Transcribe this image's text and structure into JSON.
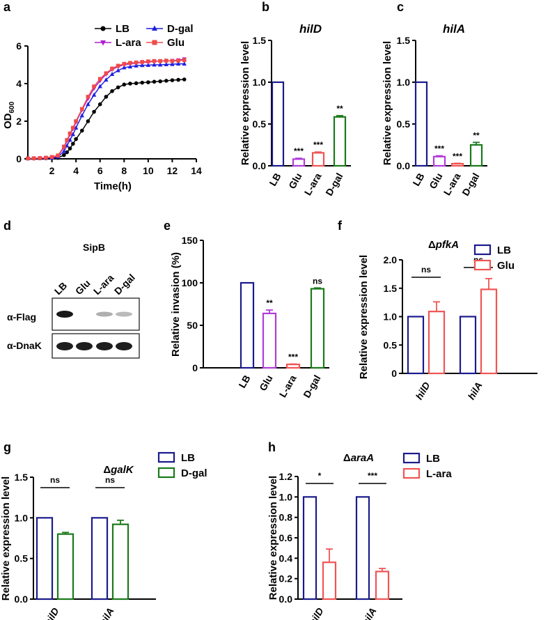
{
  "colors": {
    "LB": "#1a1a8c",
    "Glu": "#f05454",
    "Glu_purple": "#b03cd8",
    "L-ara": "#f05454",
    "D-gal": "#1a7a1a",
    "line_LB": "#000000",
    "line_Dgal": "#1f1fe0",
    "line_Lara": "#b01fd0",
    "line_Glu": "#ef4b4b"
  },
  "chart_data": [
    {
      "panel": "a",
      "type": "line",
      "title": "",
      "xlabel": "Time(h)",
      "ylabel": "OD600",
      "ylabel_main": "OD",
      "ylabel_sub": "600",
      "xlim": [
        0,
        14
      ],
      "ylim": [
        0,
        6
      ],
      "xticks": [
        "2",
        "4",
        "6",
        "8",
        "10",
        "12",
        "14"
      ],
      "yticks": [
        "0",
        "2",
        "4",
        "6"
      ],
      "legend": [
        "LB",
        "D-gal",
        "L-ara",
        "Glu"
      ],
      "series": [
        {
          "name": "LB",
          "marker": "circle",
          "x": [
            0,
            0.5,
            1,
            1.5,
            2,
            2.5,
            3,
            3.25,
            3.5,
            3.75,
            4,
            4.5,
            5,
            5.5,
            6,
            6.5,
            7,
            7.5,
            8,
            8.5,
            9,
            9.5,
            10,
            10.5,
            11,
            11.5,
            12,
            12.5,
            13
          ],
          "y": [
            0.02,
            0.02,
            0.03,
            0.03,
            0.04,
            0.05,
            0.2,
            0.35,
            0.55,
            0.8,
            1.05,
            1.5,
            2.0,
            2.5,
            2.9,
            3.3,
            3.6,
            3.8,
            3.95,
            4.0,
            4.02,
            4.05,
            4.07,
            4.1,
            4.12,
            4.15,
            4.18,
            4.2,
            4.22
          ]
        },
        {
          "name": "D-gal",
          "marker": "triangle",
          "x": [
            0,
            0.5,
            1,
            1.5,
            2,
            2.5,
            3,
            3.25,
            3.5,
            3.75,
            4,
            4.5,
            5,
            5.5,
            6,
            6.5,
            7,
            7.5,
            8,
            8.5,
            9,
            9.5,
            10,
            10.5,
            11,
            11.5,
            12,
            12.5,
            13
          ],
          "y": [
            0.02,
            0.02,
            0.03,
            0.04,
            0.05,
            0.1,
            0.4,
            0.7,
            1.0,
            1.3,
            1.65,
            2.3,
            2.9,
            3.4,
            3.85,
            4.2,
            4.5,
            4.7,
            4.85,
            4.9,
            4.95,
            4.97,
            4.98,
            5.0,
            5.0,
            5.02,
            5.03,
            5.05,
            5.05
          ]
        },
        {
          "name": "L-ara",
          "marker": "triangle-down",
          "x": [
            0,
            0.5,
            1,
            1.5,
            2,
            2.5,
            3,
            3.25,
            3.5,
            3.75,
            4,
            4.5,
            5,
            5.5,
            6,
            6.5,
            7,
            7.5,
            8,
            8.5,
            9,
            9.5,
            10,
            10.5,
            11,
            11.5,
            12,
            12.5,
            13
          ],
          "y": [
            0.02,
            0.03,
            0.04,
            0.05,
            0.08,
            0.15,
            0.6,
            0.95,
            1.3,
            1.6,
            1.95,
            2.6,
            3.2,
            3.75,
            4.15,
            4.5,
            4.75,
            4.9,
            5.0,
            5.05,
            5.1,
            5.12,
            5.15,
            5.18,
            5.2,
            5.2,
            5.22,
            5.25,
            5.3
          ]
        },
        {
          "name": "Glu",
          "marker": "square",
          "x": [
            0,
            0.5,
            1,
            1.5,
            2,
            2.5,
            3,
            3.25,
            3.5,
            3.75,
            4,
            4.5,
            5,
            5.5,
            6,
            6.5,
            7,
            7.5,
            8,
            8.5,
            9,
            9.5,
            10,
            10.5,
            11,
            11.5,
            12,
            12.5,
            13
          ],
          "y": [
            0.02,
            0.03,
            0.04,
            0.06,
            0.1,
            0.18,
            0.65,
            1.0,
            1.35,
            1.65,
            2.0,
            2.65,
            3.3,
            3.85,
            4.25,
            4.55,
            4.8,
            4.95,
            5.05,
            5.1,
            5.12,
            5.15,
            5.18,
            5.2,
            5.2,
            5.22,
            5.2,
            5.22,
            5.25
          ]
        }
      ]
    },
    {
      "panel": "b",
      "type": "bar",
      "title": "hilD",
      "ylabel": "Relative expression level",
      "categories": [
        "LB",
        "Glu",
        "L-ara",
        "D-gal"
      ],
      "values": [
        1.0,
        0.08,
        0.155,
        0.585
      ],
      "errors": [
        0,
        0.01,
        0.01,
        0.015
      ],
      "significance": [
        "",
        "***",
        "***",
        "**"
      ],
      "ylim": [
        0,
        1.5
      ],
      "yticks": [
        "0.0",
        "0.5",
        "1.0",
        "1.5"
      ],
      "bar_colors": [
        "#1a1a8c",
        "#b03cd8",
        "#f05454",
        "#1a7a1a"
      ]
    },
    {
      "panel": "c",
      "type": "bar",
      "title": "hilA",
      "ylabel": "Relative expression level",
      "categories": [
        "LB",
        "Glu",
        "L-ara",
        "D-gal"
      ],
      "values": [
        1.0,
        0.11,
        0.025,
        0.25
      ],
      "errors": [
        0,
        0.01,
        0.005,
        0.03
      ],
      "significance": [
        "",
        "***",
        "***",
        "**"
      ],
      "ylim": [
        0,
        1.5
      ],
      "yticks": [
        "0.0",
        "0.5",
        "1.0",
        "1.5"
      ],
      "bar_colors": [
        "#1a1a8c",
        "#b03cd8",
        "#f05454",
        "#1a7a1a"
      ]
    },
    {
      "panel": "e",
      "type": "bar",
      "title": "",
      "ylabel": "Relative invasion (%)",
      "categories": [
        "LB",
        "Glu",
        "L-ara",
        "D-gal"
      ],
      "values": [
        100,
        64,
        4,
        93
      ],
      "errors": [
        0,
        4,
        0.5,
        1
      ],
      "significance": [
        "",
        "**",
        "***",
        "ns"
      ],
      "ylim": [
        0,
        150
      ],
      "yticks": [
        "0",
        "50",
        "100",
        "150"
      ],
      "bar_colors": [
        "#1a1a8c",
        "#b03cd8",
        "#f05454",
        "#1a7a1a"
      ]
    },
    {
      "panel": "f",
      "type": "bar",
      "title": "ΔpfkA",
      "title_delta": "Δ",
      "title_gene": "pfkA",
      "ylabel": "Relative expression level",
      "categories": [
        "hilD",
        "hilA"
      ],
      "series": [
        {
          "name": "LB",
          "values": [
            1.0,
            1.0
          ],
          "errors": [
            0,
            0
          ]
        },
        {
          "name": "Glu",
          "values": [
            1.09,
            1.48
          ],
          "errors": [
            0.17,
            0.19
          ]
        }
      ],
      "significance": [
        "ns",
        "ns"
      ],
      "ylim": [
        0,
        2.0
      ],
      "yticks": [
        "0",
        "0.5",
        "1.0",
        "1.5",
        "2.0"
      ],
      "legend": [
        "LB",
        "Glu"
      ]
    },
    {
      "panel": "g",
      "type": "bar",
      "title": "ΔgalK",
      "title_delta": "Δ",
      "title_gene": "galK",
      "ylabel": "Relative expression level",
      "categories": [
        "hilD",
        "hilA"
      ],
      "series": [
        {
          "name": "LB",
          "values": [
            1.0,
            1.0
          ],
          "errors": [
            0,
            0
          ]
        },
        {
          "name": "D-gal",
          "values": [
            0.8,
            0.92
          ],
          "errors": [
            0.02,
            0.05
          ]
        }
      ],
      "significance": [
        "ns",
        "ns"
      ],
      "ylim": [
        0,
        1.5
      ],
      "yticks": [
        "0.0",
        "0.5",
        "1.0",
        "1.5"
      ],
      "legend": [
        "LB",
        "D-gal"
      ]
    },
    {
      "panel": "h",
      "type": "bar",
      "title": "ΔaraA",
      "title_delta": "Δ",
      "title_gene": "araA",
      "ylabel": "Relative expression level",
      "categories": [
        "hilD",
        "hilA"
      ],
      "series": [
        {
          "name": "LB",
          "values": [
            1.0,
            1.0
          ],
          "errors": [
            0,
            0
          ]
        },
        {
          "name": "L-ara",
          "values": [
            0.36,
            0.27
          ],
          "errors": [
            0.13,
            0.03
          ]
        }
      ],
      "significance": [
        "*",
        "***"
      ],
      "ylim": [
        0,
        1.2
      ],
      "yticks": [
        "0.0",
        "0.2",
        "0.4",
        "0.6",
        "0.8",
        "1.0",
        "1.2"
      ],
      "legend": [
        "LB",
        "L-ara"
      ]
    }
  ],
  "panels": {
    "a": "a",
    "b": "b",
    "c": "c",
    "d": "d",
    "e": "e",
    "f": "f",
    "g": "g",
    "h": "h"
  },
  "blot": {
    "title": "SipB",
    "lanes": [
      "LB",
      "Glu",
      "L-ara",
      "D-gal"
    ],
    "rows": [
      "α-Flag",
      "α-DnaK"
    ],
    "flag_intensity": [
      1.0,
      0.0,
      0.35,
      0.3
    ],
    "dnak_intensity": [
      1.0,
      1.0,
      1.0,
      1.0
    ]
  }
}
